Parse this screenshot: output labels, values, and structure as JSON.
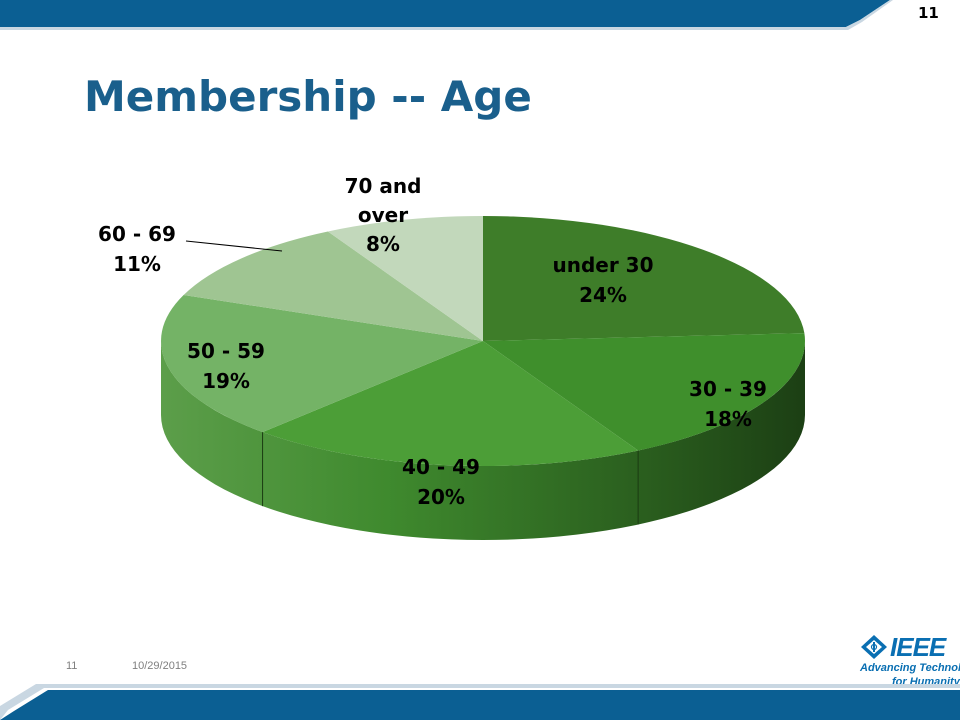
{
  "slide": {
    "number": "11",
    "title": "Membership -- Age"
  },
  "footer": {
    "number": "11",
    "date": "10/29/2015"
  },
  "logo": {
    "name": "IEEE",
    "tagline_line1": "Advancing Technology",
    "tagline_line2": "for Humanity",
    "color": "#0a6fb2"
  },
  "colors": {
    "bar": "#0b5f93",
    "title": "#1a5f8c"
  },
  "chart_data": {
    "type": "pie",
    "title": "",
    "slices": [
      {
        "name": "under 30",
        "label": "24%",
        "value": 24,
        "color": "#3e7d29"
      },
      {
        "name": "30 - 39",
        "label": "18%",
        "value": 18,
        "color": "#3f8f2c"
      },
      {
        "name": "40 - 49",
        "label": "20%",
        "value": 20,
        "color": "#4c9e37"
      },
      {
        "name": "50 - 59",
        "label": "19%",
        "value": 19,
        "color": "#74b366"
      },
      {
        "name": "60 - 69",
        "label": "11%",
        "value": 11,
        "color": "#9fc592"
      },
      {
        "name": "70 and over",
        "label": "8%",
        "value": 8,
        "color": "#c2d8bb"
      }
    ]
  }
}
